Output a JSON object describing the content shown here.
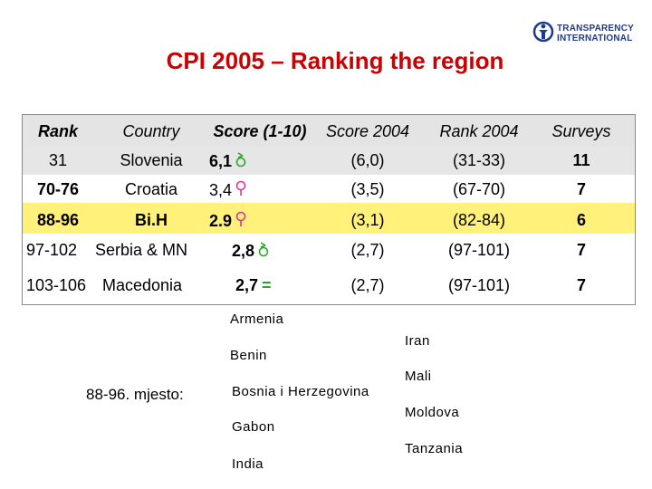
{
  "logo": {
    "line1": "TRANSPARENCY",
    "line2": "INTERNATIONAL"
  },
  "title": "CPI 2005 – Ranking the region",
  "table": {
    "headers": {
      "rank": "Rank",
      "country": "Country",
      "score": "Score (1-10)",
      "score2004": "Score 2004",
      "rank2004": "Rank 2004",
      "surveys": "Surveys"
    },
    "rows": [
      {
        "rank": "31",
        "country": "Slovenia",
        "score": "6,1",
        "trend": "up",
        "score2004": "(6,0)",
        "rank2004": "(31-33)",
        "surveys": "11"
      },
      {
        "rank": "70-76",
        "country": "Croatia",
        "score": "3,4",
        "trend": "down",
        "score2004": "(3,5)",
        "rank2004": "(67-70)",
        "surveys": "7"
      },
      {
        "rank": "88-96",
        "country": "Bi.H",
        "score": "2.9",
        "trend": "down",
        "score2004": "(3,1)",
        "rank2004": "(82-84)",
        "surveys": "6",
        "highlight": "#fff17a"
      },
      {
        "rank": "97-102",
        "country": "Serbia & MN",
        "score": "2,8",
        "trend": "up",
        "score2004": "(2,7)",
        "rank2004": "(97-101)",
        "surveys": "7"
      },
      {
        "rank": "103-106",
        "country": "Macedonia",
        "score": "2,7",
        "trend": "same",
        "trend_text": "=",
        "score2004": "(2,7)",
        "rank2004": "(97-101)",
        "surveys": "7"
      }
    ],
    "arrow_colors": {
      "up": "#2aa52a",
      "down": "#e0339a"
    }
  },
  "shared_rank": {
    "label": "88-96. mjesto:",
    "countries_col1": [
      "Armenia",
      "Benin",
      "Bosnia i Herzegovina",
      "Gabon",
      "India"
    ],
    "countries_col2": [
      "Iran",
      "Mali",
      "Moldova",
      "Tanzania"
    ]
  }
}
